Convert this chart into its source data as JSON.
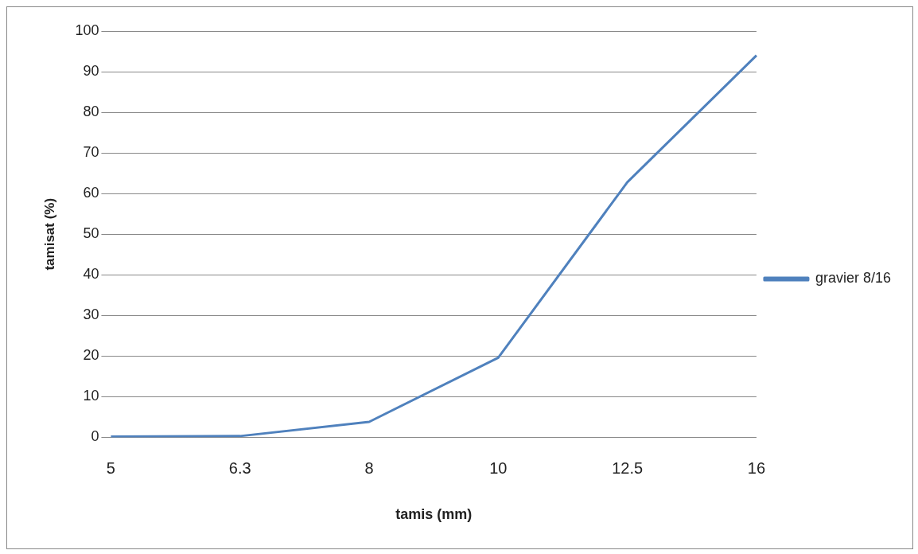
{
  "chart_data": {
    "type": "line",
    "xlabel": "tamis (mm)",
    "ylabel": "tamisat (%)",
    "categories": [
      "5",
      "6.3",
      "8",
      "10",
      "12.5",
      "16"
    ],
    "series": [
      {
        "name": "gravier 8/16",
        "color": "#4f81bd",
        "values": [
          0.2,
          0.3,
          3.8,
          19.6,
          62.8,
          94
        ]
      }
    ],
    "ylim": [
      0,
      100
    ],
    "yticks": [
      0,
      10,
      20,
      30,
      40,
      50,
      60,
      70,
      80,
      90,
      100
    ],
    "grid": "y",
    "legend": "right",
    "marker": "none",
    "line_style": "solid"
  }
}
